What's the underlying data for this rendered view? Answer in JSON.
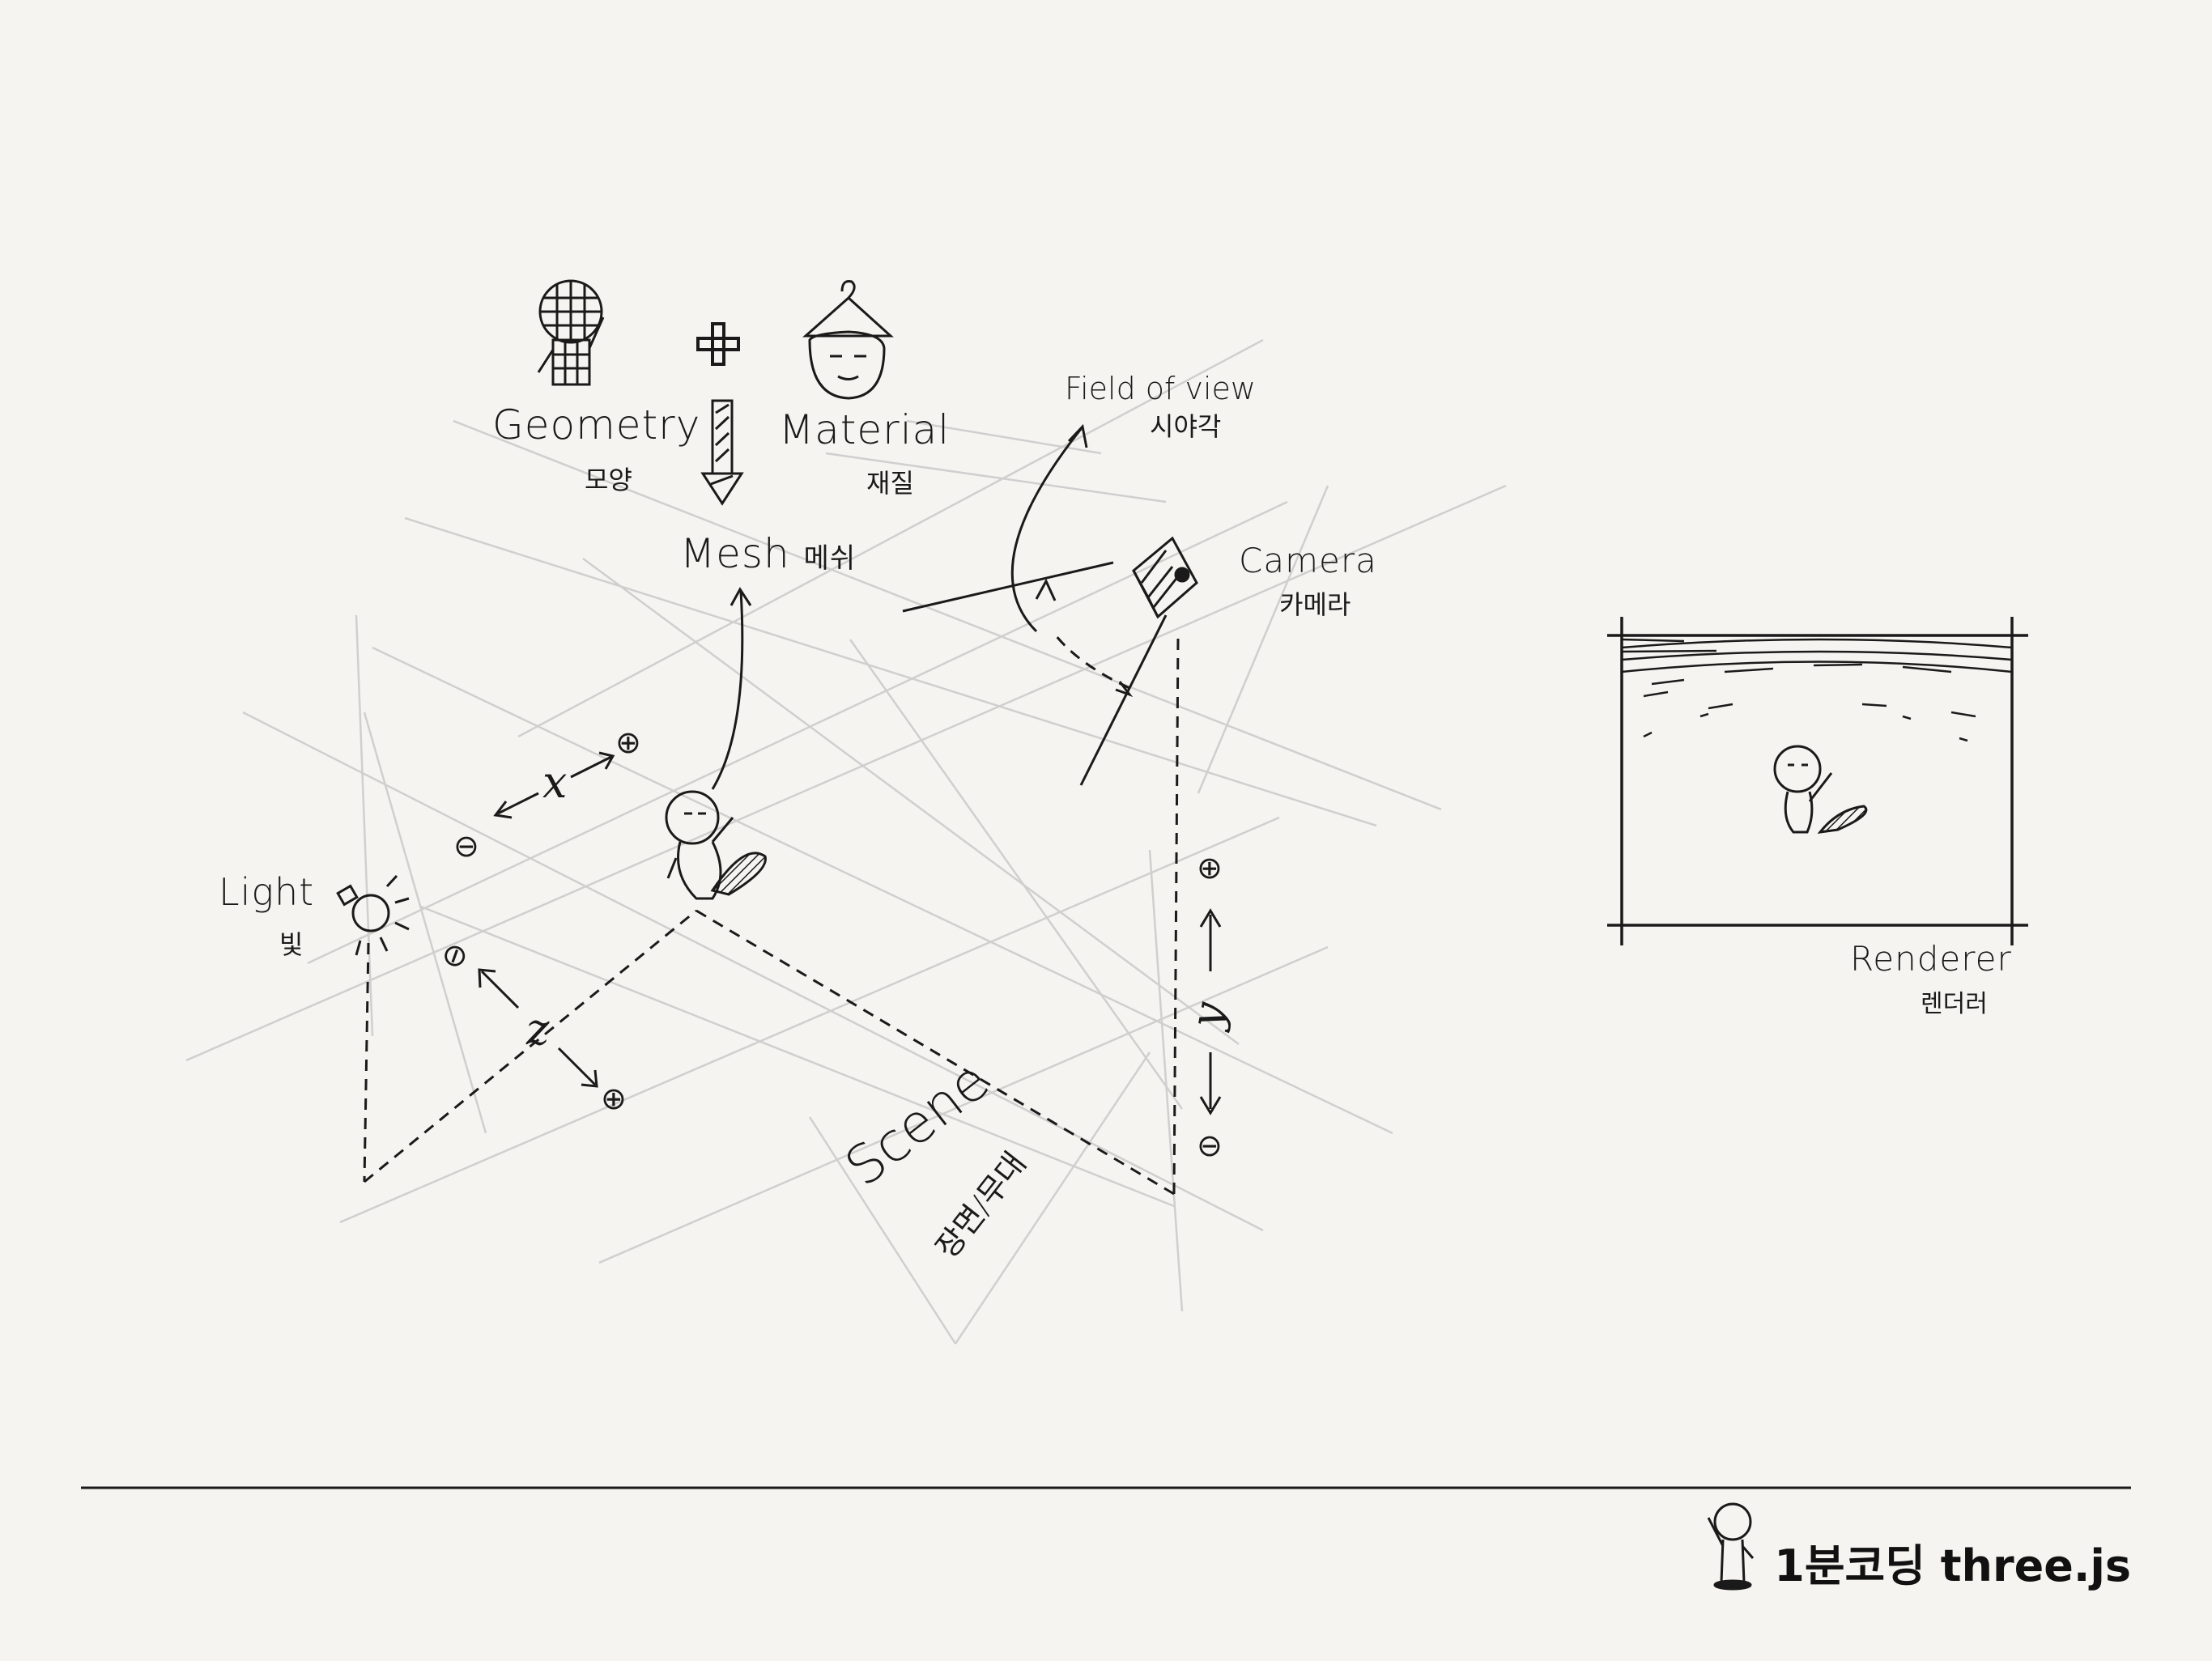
{
  "labels": {
    "geometry": "Geometry",
    "geometry_ko": "모양",
    "plus": "+",
    "material": "Material",
    "material_ko": "재질",
    "mesh": "Mesh",
    "mesh_ko": "메쉬",
    "field_of_view": "Field of view",
    "field_of_view_ko": "시야각",
    "camera": "Camera",
    "camera_ko": "카메라",
    "light": "Light",
    "light_ko": "빛",
    "scene": "Scene",
    "scene_ko": "장면/무대",
    "renderer": "Renderer",
    "renderer_ko": "렌더러"
  },
  "axes": {
    "x": "x",
    "y": "y",
    "z": "z",
    "plus_sign": "⊕",
    "minus_sign": "⊖"
  },
  "footer": {
    "brand": "1분코딩 three.js"
  },
  "icons": {
    "light": "bulb-icon",
    "camera": "camera-icon",
    "mascot": "mascot-character-icon",
    "hanger": "hanger-icon"
  },
  "colors": {
    "background": "#f5f4f0",
    "ink": "#1a1a1a",
    "grid": "#c8c8c8"
  }
}
